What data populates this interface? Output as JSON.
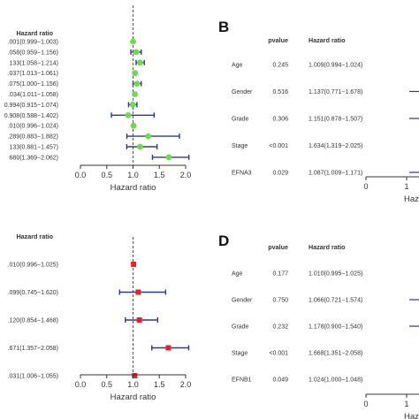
{
  "chart_data": [
    {
      "panel": "",
      "type": "forest",
      "header": "Hazard ratio",
      "xlabel": "Hazard ratio",
      "xticks": [
        "0.0",
        "0.5",
        "1.0",
        "1.5",
        "2.0"
      ],
      "xlim": [
        0,
        2.1
      ],
      "ref_line": 1.0,
      "marker_color": "#6ddc48",
      "bar_color": "#2b3a8c",
      "rows": [
        {
          "label": ".001(0.999−1.003)",
          "hr": 1.001,
          "lo": 0.999,
          "hi": 1.003
        },
        {
          "label": ".058(0.959−1.156)",
          "hr": 1.058,
          "lo": 0.959,
          "hi": 1.156
        },
        {
          "label": "133(1.058−1.214)",
          "hr": 1.133,
          "lo": 1.058,
          "hi": 1.214
        },
        {
          "label": ".037(1.013−1.061)",
          "hr": 1.037,
          "lo": 1.013,
          "hi": 1.061
        },
        {
          "label": ".075(1.000−1.156)",
          "hr": 1.075,
          "lo": 1.0,
          "hi": 1.156
        },
        {
          "label": ".034(1.011−1.058)",
          "hr": 1.034,
          "lo": 1.011,
          "hi": 1.058
        },
        {
          "label": "0.994(0.915−1.074)",
          "hr": 0.994,
          "lo": 0.915,
          "hi": 1.074
        },
        {
          "label": "0.908(0.588−1.402)",
          "hr": 0.908,
          "lo": 0.588,
          "hi": 1.402
        },
        {
          "label": ".010(0.996−1.024)",
          "hr": 1.01,
          "lo": 0.996,
          "hi": 1.024
        },
        {
          "label": ".289(0.883−1.882)",
          "hr": 1.289,
          "lo": 0.883,
          "hi": 1.882
        },
        {
          "label": "133(0.881−1.457)",
          "hr": 1.133,
          "lo": 0.881,
          "hi": 1.457
        },
        {
          "label": "680(1.369−2.062)",
          "hr": 1.68,
          "lo": 1.369,
          "hi": 2.062
        }
      ]
    },
    {
      "panel": "B",
      "type": "forest-table",
      "header_pvalue": "pvalue",
      "header_hr": "Hazard ratio",
      "xlabel": "Haz",
      "xticks": [
        "0",
        "1"
      ],
      "rows": [
        {
          "label": "Age",
          "pvalue": "0.245",
          "hr_text": "1.009(0.994−1.024)",
          "hr": 1.009,
          "lo": 0.994,
          "hi": 1.024
        },
        {
          "label": "Gender",
          "pvalue": "0.516",
          "hr_text": "1.137(0.771−1.678)",
          "hr": 1.137,
          "lo": 0.771,
          "hi": 1.678
        },
        {
          "label": "Grade",
          "pvalue": "0.306",
          "hr_text": "1.151(0.878−1.507)",
          "hr": 1.151,
          "lo": 0.878,
          "hi": 1.507
        },
        {
          "label": "Stage",
          "pvalue": "<0.001",
          "hr_text": "1.634(1.319−2.025)",
          "hr": 1.634,
          "lo": 1.319,
          "hi": 2.025
        },
        {
          "label": "EFNA3",
          "pvalue": "0.029",
          "hr_text": "1.087(1.009−1.171)",
          "hr": 1.087,
          "lo": 1.009,
          "hi": 1.171
        }
      ]
    },
    {
      "panel": "",
      "type": "forest",
      "header": "Hazard ratio",
      "xlabel": "Hazard ratio",
      "xticks": [
        "0.0",
        "0.5",
        "1.0",
        "1.5",
        "2.0"
      ],
      "xlim": [
        0,
        2.1
      ],
      "ref_line": 1.0,
      "marker_color": "#e8202a",
      "bar_color": "#2b3a8c",
      "rows": [
        {
          "label": ".010(0.996−1.025)",
          "hr": 1.01,
          "lo": 0.996,
          "hi": 1.025
        },
        {
          "label": ".099(0.745−1.620)",
          "hr": 1.099,
          "lo": 0.745,
          "hi": 1.62
        },
        {
          "label": ".120(0.854−1.468)",
          "hr": 1.12,
          "lo": 0.854,
          "hi": 1.468
        },
        {
          "label": ".671(1.357−2.058)",
          "hr": 1.671,
          "lo": 1.357,
          "hi": 2.058
        },
        {
          "label": ".031(1.006−1.055)",
          "hr": 1.031,
          "lo": 1.006,
          "hi": 1.055
        }
      ]
    },
    {
      "panel": "D",
      "type": "forest-table",
      "header_pvalue": "pvalue",
      "header_hr": "Hazard ratio",
      "xlabel": "Haz",
      "xticks": [
        "0",
        "1"
      ],
      "rows": [
        {
          "label": "Age",
          "pvalue": "0.177",
          "hr_text": "1.010(0.995−1.025)",
          "hr": 1.01,
          "lo": 0.995,
          "hi": 1.025
        },
        {
          "label": "Gender",
          "pvalue": "0.750",
          "hr_text": "1.066(0.721−1.574)",
          "hr": 1.066,
          "lo": 0.721,
          "hi": 1.574
        },
        {
          "label": "Grade",
          "pvalue": "0.232",
          "hr_text": "1.178(0.900−1.540)",
          "hr": 1.178,
          "lo": 0.9,
          "hi": 1.54
        },
        {
          "label": "Stage",
          "pvalue": "<0.001",
          "hr_text": "1.668(1.351−2.058)",
          "hr": 1.668,
          "lo": 1.351,
          "hi": 2.058
        },
        {
          "label": "EFNB1",
          "pvalue": "0.049",
          "hr_text": "1.024(1.000−1.048)",
          "hr": 1.024,
          "lo": 1.0,
          "hi": 1.048
        }
      ]
    }
  ]
}
